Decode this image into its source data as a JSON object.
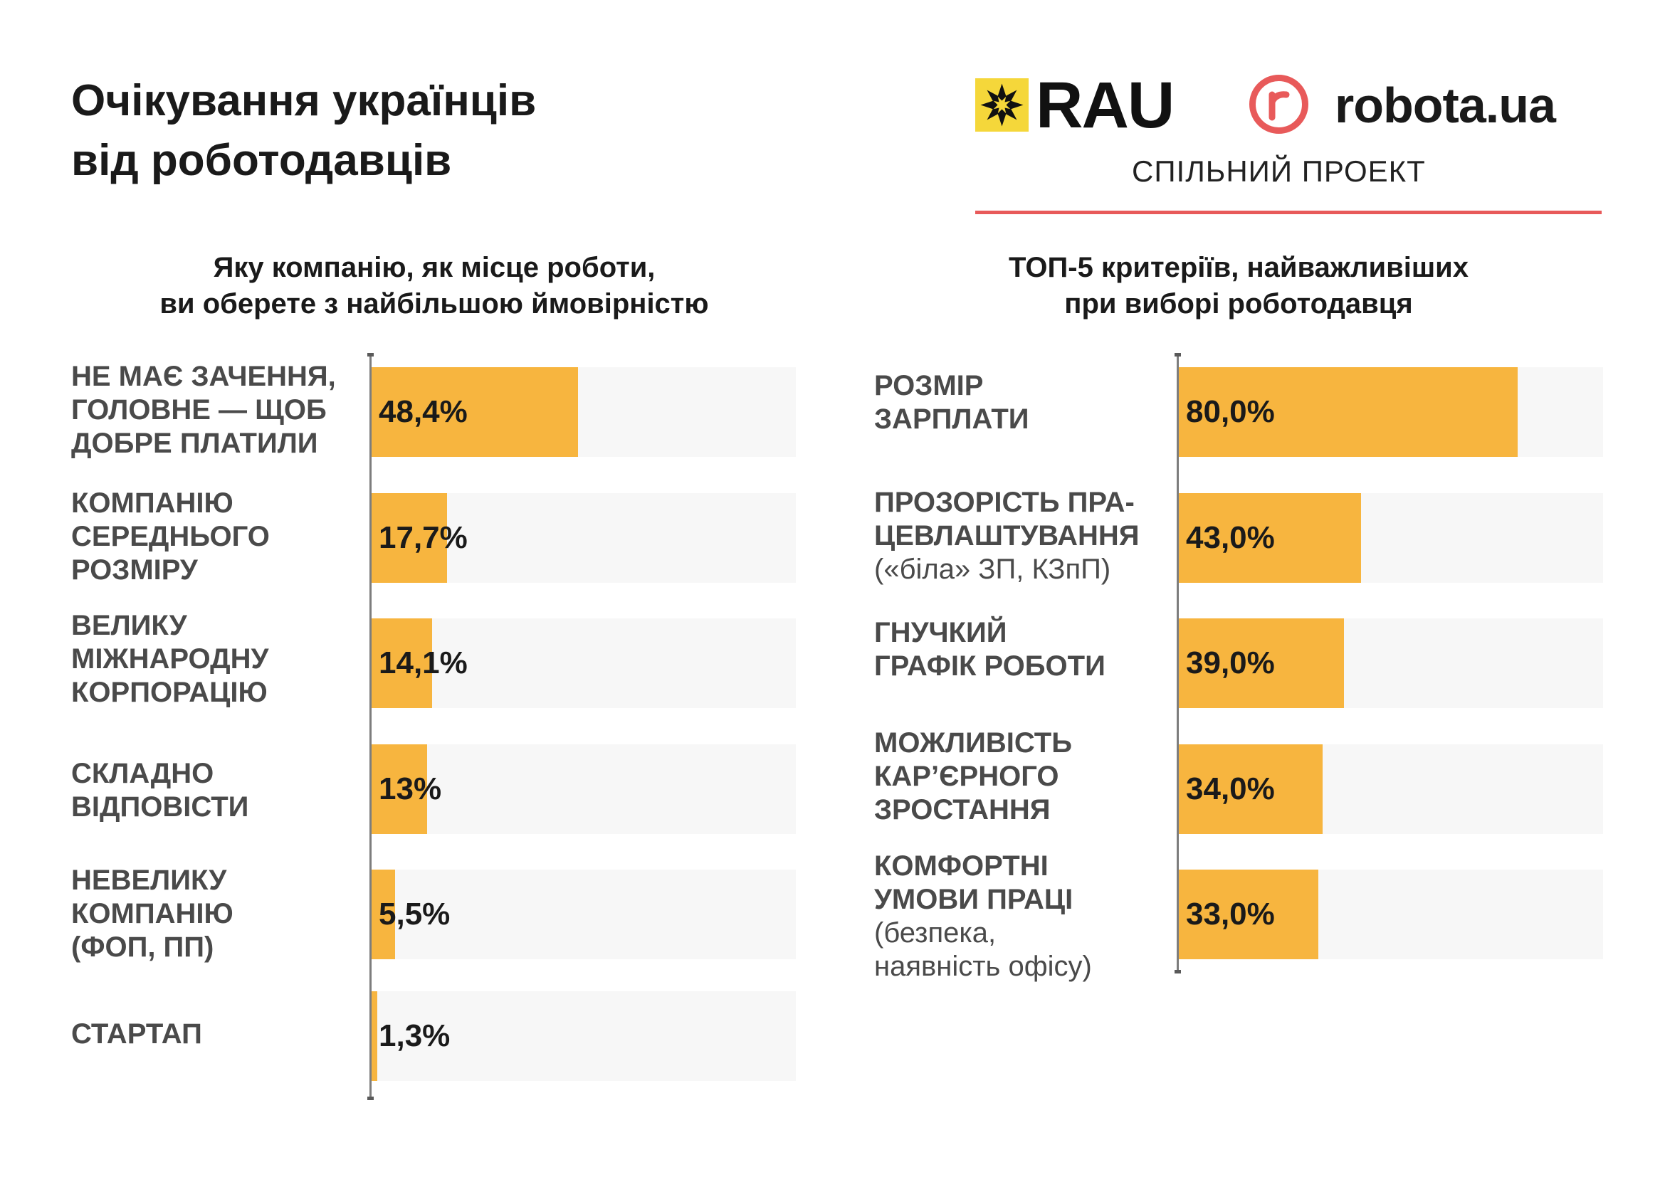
{
  "header": {
    "title_lines": [
      "Очікування українців",
      "від роботодавців"
    ],
    "logo_rau": "RAU",
    "logo_robota": "robota.ua",
    "joint_project": "СПІЛЬНИЙ ПРОЕКТ"
  },
  "colors": {
    "bar": "#f7b53f",
    "track": "#f7f7f7",
    "accent_red": "#e85a5a",
    "rau_yellow": "#f5d73a"
  },
  "icons": {
    "rau": "rau-ornament-icon",
    "robota": "robota-r-icon"
  },
  "chart_data": [
    {
      "type": "bar",
      "orientation": "horizontal",
      "title_lines": [
        "Яку компанію, як місце роботи,",
        "ви оберете з найбільшою ймовірністю"
      ],
      "categories": [
        [
          "НЕ МАЄ ЗАЧЕННЯ,",
          "ГОЛОВНЕ — ЩОБ",
          "ДОБРЕ ПЛАТИЛИ"
        ],
        [
          "КОМПАНІЮ",
          "СЕРЕДНЬОГО",
          "РОЗМІРУ"
        ],
        [
          "ВЕЛИКУ",
          "МІЖНАРОДНУ",
          "КОРПОРАЦІЮ"
        ],
        [
          "СКЛАДНО",
          "ВІДПОВІСТИ"
        ],
        [
          "НЕВЕЛИКУ",
          "КОМПАНІЮ",
          "(ФОП, ПП)"
        ],
        [
          "СТАРТАП"
        ]
      ],
      "values": [
        48.4,
        17.7,
        14.1,
        13,
        5.5,
        1.3
      ],
      "labels": [
        "48,4%",
        "17,7%",
        "14,1%",
        "13%",
        "5,5%",
        "1,3%"
      ],
      "xlim": [
        0,
        100
      ]
    },
    {
      "type": "bar",
      "orientation": "horizontal",
      "title_lines": [
        "ТОП-5 критеріїв, найважливіших",
        "при виборі роботодавця"
      ],
      "categories": [
        [
          "РОЗМІР",
          "ЗАРПЛАТИ"
        ],
        [
          "ПРОЗОРІСТЬ ПРА-",
          "ЦЕВЛАШТУВАННЯ"
        ],
        [
          "ГНУЧКИЙ",
          "ГРАФІК РОБОТИ"
        ],
        [
          "МОЖЛИВІСТЬ",
          "КАР’ЄРНОГО",
          "ЗРОСТАННЯ"
        ],
        [
          "КОМФОРТНІ",
          "УМОВИ ПРАЦІ"
        ]
      ],
      "notes": [
        [],
        [
          "(«біла» ЗП, КЗпП)"
        ],
        [],
        [],
        [
          "(безпека,",
          "наявність офісу)"
        ]
      ],
      "values": [
        80.0,
        43.0,
        39.0,
        34.0,
        33.0
      ],
      "labels": [
        "80,0%",
        "43,0%",
        "39,0%",
        "34,0%",
        "33,0%"
      ],
      "xlim": [
        0,
        100
      ]
    }
  ]
}
